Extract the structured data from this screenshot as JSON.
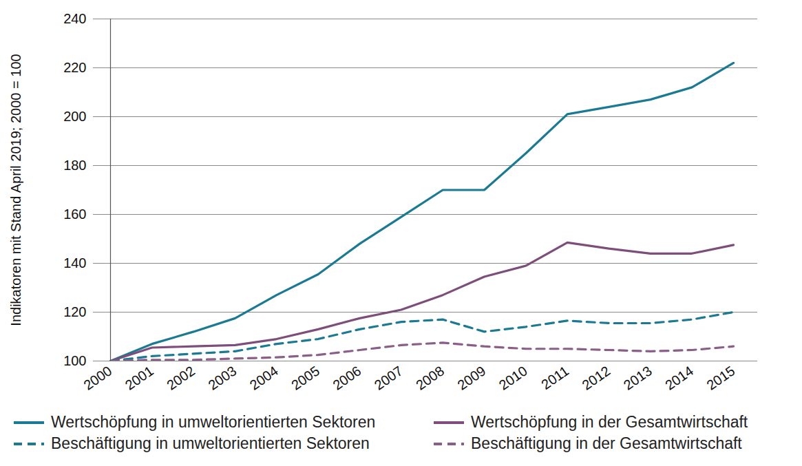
{
  "chart_data": {
    "type": "line",
    "y_label": "Indikatoren mit Stand April 2019; 2000 = 100",
    "x": [
      2000,
      2001,
      2002,
      2003,
      2004,
      2005,
      2006,
      2007,
      2008,
      2009,
      2010,
      2011,
      2012,
      2013,
      2014,
      2015
    ],
    "xlim": [
      2000,
      2015
    ],
    "xticks": [
      2000,
      2001,
      2002,
      2003,
      2004,
      2005,
      2006,
      2007,
      2008,
      2009,
      2010,
      2011,
      2012,
      2013,
      2014,
      2015
    ],
    "ylim": [
      100,
      240
    ],
    "yticks": [
      100,
      120,
      140,
      160,
      180,
      200,
      220,
      240
    ],
    "grid": true,
    "legend": "bottom",
    "series": [
      {
        "name": "Wertschöpfung in umweltorientierten Sektoren",
        "color": "#1b7a93",
        "line_style": "solid",
        "values": [
          100,
          107,
          112,
          117.5,
          127,
          135.5,
          148,
          159,
          170,
          170,
          185,
          201,
          204,
          207,
          212,
          222
        ]
      },
      {
        "name": "Wertschöpfung in der Gesamtwirtschaft",
        "color": "#7d4e7b",
        "line_style": "solid",
        "values": [
          100,
          105.5,
          106,
          106.5,
          109,
          113,
          117.5,
          121,
          127,
          134.5,
          139,
          148.5,
          146,
          144,
          144,
          147.5
        ]
      },
      {
        "name": "Beschäftigung in umweltorientierten Sektoren",
        "color": "#1b7a93",
        "line_style": "dashed",
        "values": [
          100,
          102,
          103,
          104,
          107,
          109,
          113,
          116,
          117,
          112,
          114,
          116.5,
          115.5,
          115.5,
          117,
          120
        ]
      },
      {
        "name": "Beschäftigung in der Gesamtwirtschaft",
        "color": "#8a5e88",
        "line_style": "dashed",
        "values": [
          100,
          100.5,
          100.5,
          101,
          101.5,
          102.5,
          104.5,
          106.5,
          107.5,
          106,
          105,
          105,
          104.5,
          104,
          104.5,
          106
        ]
      }
    ]
  }
}
